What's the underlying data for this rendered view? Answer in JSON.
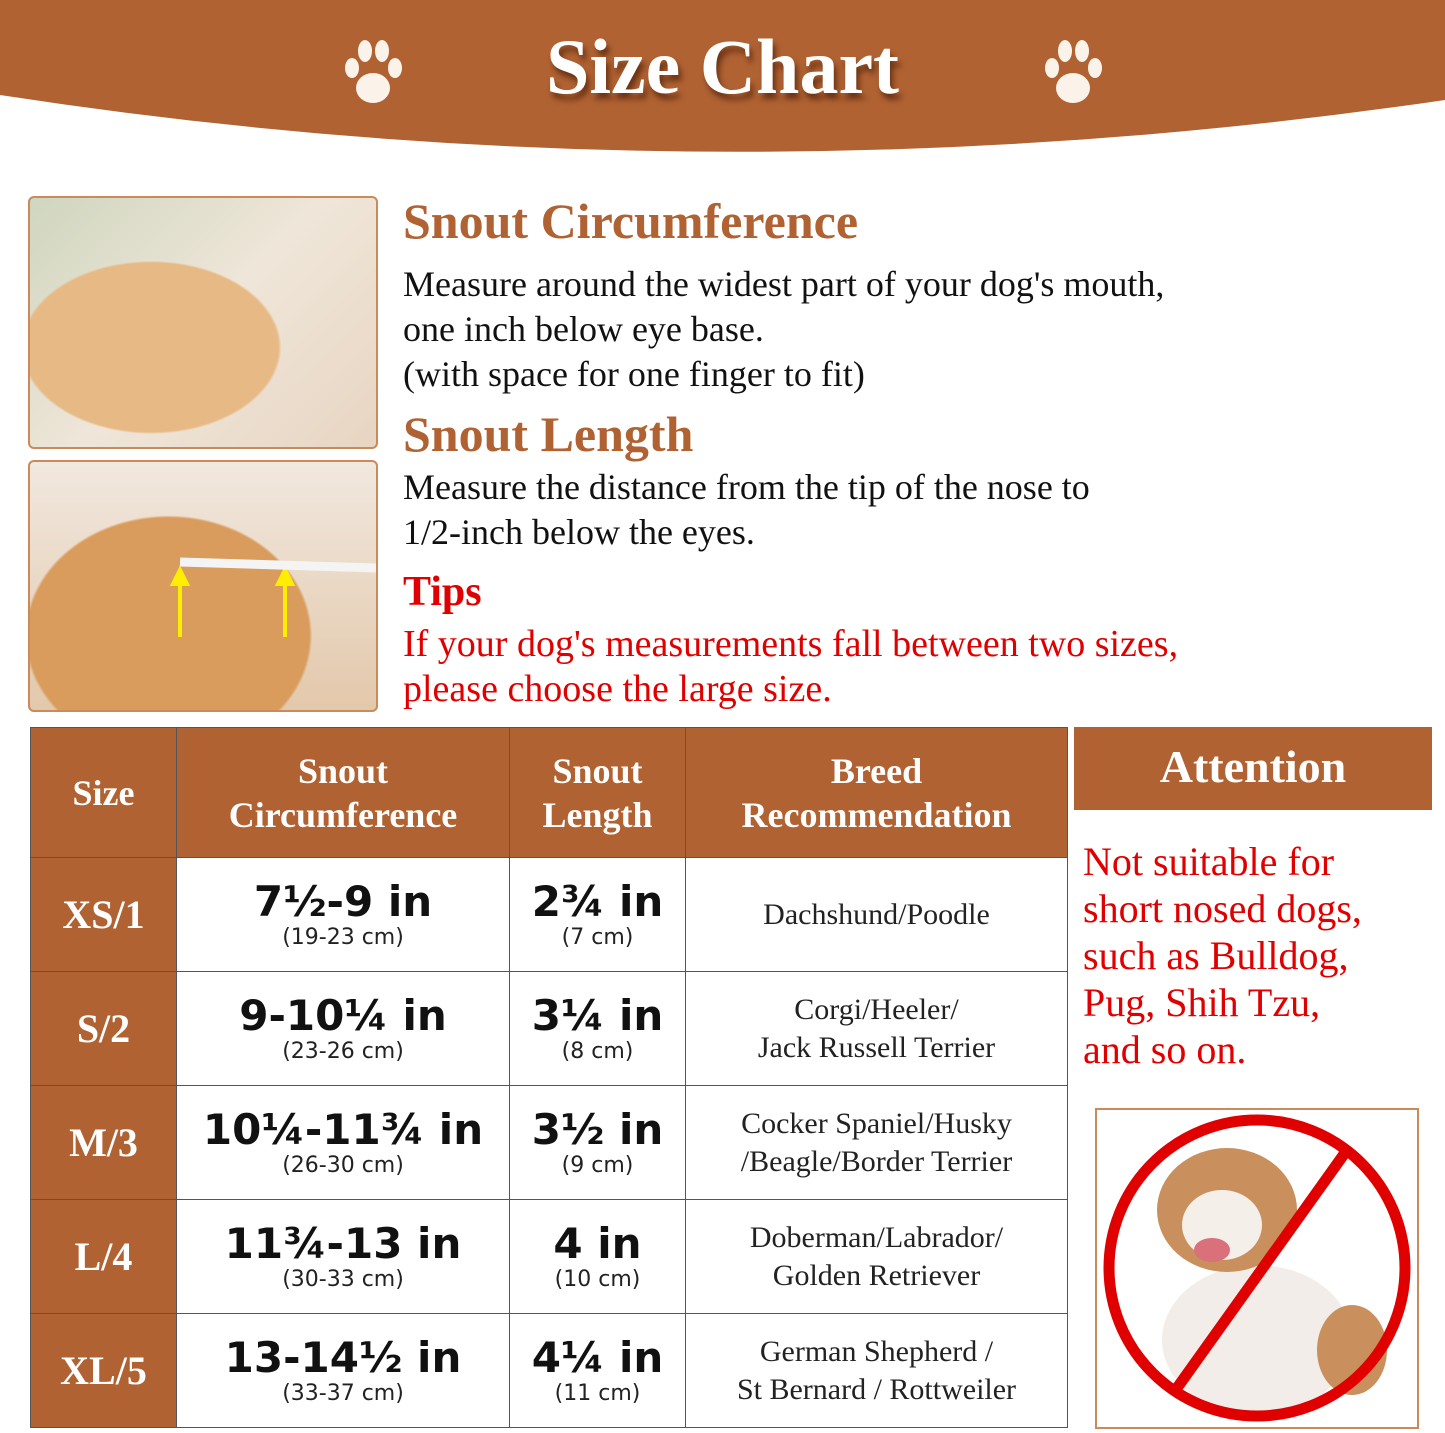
{
  "header": {
    "title": "Size Chart",
    "icon": "paw-icon"
  },
  "instructions": {
    "circumference": {
      "heading": "Snout Circumference",
      "lines": [
        "Measure around the widest part of your dog's mouth,",
        "one inch below eye base.",
        "(with space for one finger to fit)"
      ]
    },
    "length": {
      "heading": "Snout Length",
      "lines": [
        "Measure the distance from the tip of the nose to",
        "1/2-inch below the eyes."
      ]
    },
    "tips": {
      "heading": "Tips",
      "lines": [
        "If your dog's measurements fall between two sizes,",
        "please choose the large size."
      ]
    }
  },
  "table": {
    "headers": [
      "Size",
      "Snout Circumference",
      "Snout Length",
      "Breed Recommendation"
    ],
    "rows": [
      {
        "size": "XS/1",
        "circ": "7½-9 in",
        "circ_cm": "(19-23 cm)",
        "len": "2¾ in",
        "len_cm": "(7 cm)",
        "breed": [
          "Dachshund/Poodle"
        ]
      },
      {
        "size": "S/2",
        "circ": "9-10¼ in",
        "circ_cm": "(23-26 cm)",
        "len": "3¼ in",
        "len_cm": "(8 cm)",
        "breed": [
          "Corgi/Heeler/",
          "Jack Russell Terrier"
        ]
      },
      {
        "size": "M/3",
        "circ": "10¼-11¾ in",
        "circ_cm": "(26-30 cm)",
        "len": "3½ in",
        "len_cm": "(9 cm)",
        "breed": [
          "Cocker Spaniel/Husky",
          "/Beagle/Border Terrier"
        ]
      },
      {
        "size": "L/4",
        "circ": "11¾-13 in",
        "circ_cm": "(30-33 cm)",
        "len": "4 in",
        "len_cm": "(10 cm)",
        "breed": [
          "Doberman/Labrador/",
          "Golden Retriever"
        ]
      },
      {
        "size": "XL/5",
        "circ": "13-14½ in",
        "circ_cm": "(33-37 cm)",
        "len": "4¼ in",
        "len_cm": "(11 cm)",
        "breed": [
          "German Shepherd /",
          "St Bernard / Rottweiler"
        ]
      }
    ]
  },
  "attention": {
    "heading": "Attention",
    "lines": [
      "Not suitable for",
      "short nosed dogs,",
      "such as Bulldog,",
      "Pug, Shih Tzu,",
      "and so on."
    ]
  },
  "colors": {
    "brand": "#b06232",
    "warning": "#e00000"
  }
}
